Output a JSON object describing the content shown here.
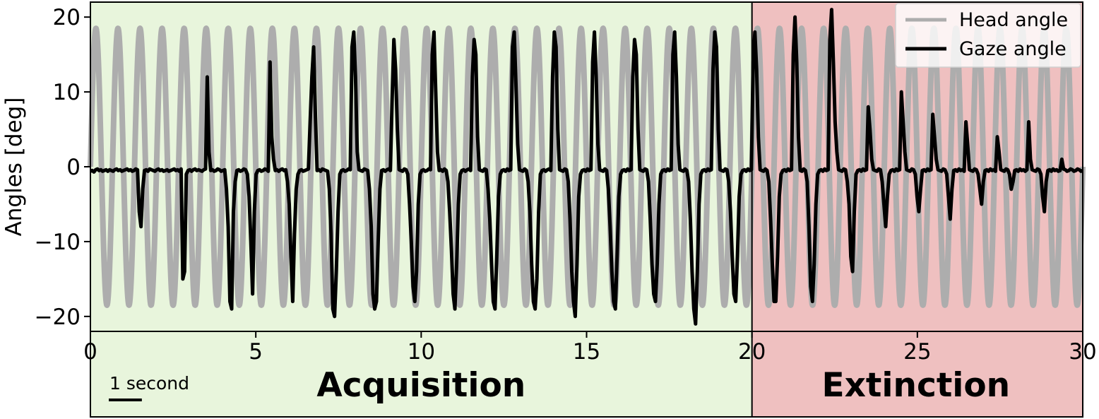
{
  "colors": {
    "acquisition_bg": "#e8f5dc",
    "extinction_bg": "#efc0c0",
    "head_line": "#adadad",
    "gaze_line": "#000000",
    "axis": "#000000",
    "legend_bg": "#ffffff"
  },
  "chart_data": {
    "type": "line",
    "title": "",
    "xlabel": "",
    "ylabel": "Angles [deg]",
    "xlim": [
      0,
      30
    ],
    "ylim": [
      -22,
      22
    ],
    "xticks": [
      0,
      5,
      10,
      15,
      20,
      25,
      30
    ],
    "xtick_labels": [
      "0",
      "5",
      "10",
      "15",
      "20",
      "25",
      "30"
    ],
    "yticks": [
      20,
      10,
      0,
      -10,
      -20
    ],
    "ytick_labels": [
      "20",
      "10",
      "0",
      "−10",
      "−20"
    ],
    "grid": false,
    "legend": {
      "location": "top-right",
      "entries": [
        {
          "label": "Head angle",
          "color": "#adadad"
        },
        {
          "label": "Gaze angle",
          "color": "#000000"
        }
      ]
    },
    "phases": [
      {
        "name": "Acquisition",
        "start": 0,
        "end": 20,
        "color": "#e8f5dc"
      },
      {
        "name": "Extinction",
        "start": 20,
        "end": 30,
        "color": "#efc0c0"
      }
    ],
    "scale_bar": {
      "label": "1 second",
      "seconds": 1
    },
    "series": [
      {
        "name": "Head angle",
        "color": "#adadad",
        "kind": "sine",
        "amplitude": 18.5,
        "cycles": 45,
        "duration": 30
      },
      {
        "name": "Gaze angle",
        "color": "#000000",
        "kind": "sampled",
        "baseline": -0.4,
        "sample_step": 0.1667,
        "values": [
          -0.6,
          -0.5,
          -0.7,
          -0.4,
          -0.3,
          -0.5,
          -0.4,
          -0.6,
          -0.5,
          -0.4,
          -0.6,
          -0.4,
          -0.5,
          -0.6,
          -0.4,
          -0.3,
          -0.5,
          -0.4,
          -0.6,
          -0.5,
          -0.4,
          -0.3,
          -0.5,
          -0.4,
          -0.6,
          -0.5,
          -0.3,
          -0.4,
          -6,
          -8,
          -3,
          -0.5,
          -0.4,
          -0.6,
          -0.3,
          -0.4,
          -0.5,
          -0.6,
          -0.4,
          -0.3,
          -0.5,
          -0.4,
          -0.6,
          -0.5,
          -0.4,
          -0.6,
          -0.5,
          -0.4,
          -0.3,
          -0.5,
          -0.4,
          -0.6,
          -0.3,
          -15,
          -14,
          -1,
          -0.5,
          -0.4,
          -0.6,
          -0.4,
          -0.3,
          -0.5,
          -0.4,
          -0.5,
          -0.6,
          -0.4,
          -0.3,
          12,
          2,
          -0.5,
          -0.4,
          -0.6,
          -0.5,
          -0.3,
          -0.4,
          -0.6,
          -0.5,
          -0.4,
          -3,
          -8,
          -18,
          -19,
          -6,
          -2,
          -0.5,
          -0.4,
          -0.6,
          -0.5,
          -0.3,
          -0.4,
          -1,
          -4,
          -10,
          -17,
          -6,
          -1,
          -0.5,
          -0.4,
          -0.6,
          -0.5,
          -0.3,
          -0.4,
          -0.6,
          14,
          4,
          1,
          -0.5,
          -0.4,
          -0.6,
          -0.4,
          -0.3,
          -0.5,
          -0.4,
          -2,
          -5,
          -12,
          -18,
          -9,
          -3,
          -1,
          -0.5,
          -0.4,
          -0.6,
          -0.5,
          -0.4,
          -0.3,
          6,
          12,
          16,
          7,
          -0.5,
          -0.4,
          -0.6,
          -0.3,
          -0.4,
          -0.5,
          -0.6,
          -3,
          -9,
          -19,
          -20,
          -14,
          -6,
          -1,
          -0.5,
          -0.4,
          -0.6,
          -0.5,
          -0.3,
          -0.4,
          16,
          18,
          12,
          2,
          -0.4,
          -0.5,
          -0.6,
          -0.3,
          -0.4,
          -0.5,
          -3,
          -8,
          -17,
          -19,
          -18,
          -10,
          -3,
          -0.5,
          -0.4,
          -0.6,
          -0.4,
          -0.3,
          -0.5,
          9,
          17,
          13,
          5,
          -0.4,
          -0.5,
          -0.6,
          -0.3,
          -0.4,
          -1,
          -5,
          -10,
          -16,
          -18,
          -14,
          -5,
          -1,
          -0.5,
          -0.4,
          -0.6,
          -0.5,
          -0.3,
          -0.4,
          15,
          18,
          10,
          2,
          -0.5,
          -0.4,
          -0.6,
          -0.3,
          -0.5,
          -2,
          -6,
          -11,
          -17,
          -19,
          -13,
          -5,
          -1,
          -0.5,
          -0.4,
          -0.6,
          -0.4,
          -0.3,
          -0.5,
          12,
          17,
          15,
          4,
          -0.4,
          -0.5,
          -0.6,
          -0.3,
          -0.4,
          -3,
          -7,
          -13,
          -18,
          -19,
          -12,
          -4,
          -1,
          -0.5,
          -0.4,
          -0.6,
          -0.3,
          -0.5,
          -0.4,
          16,
          18,
          11,
          3,
          -0.4,
          -0.5,
          -0.6,
          -0.3,
          -0.5,
          -2,
          -6,
          -13,
          -18,
          -19,
          -15,
          -6,
          -1,
          -0.5,
          -0.4,
          -0.6,
          -0.4,
          -0.3,
          -0.5,
          12,
          18,
          16,
          5,
          -0.4,
          -0.5,
          -0.6,
          -0.3,
          -0.4,
          -2,
          -7,
          -14,
          -18,
          -20,
          -13,
          -4,
          -1,
          -0.5,
          -0.4,
          -0.6,
          -0.3,
          -0.5,
          -0.4,
          14,
          18,
          12,
          3,
          -0.4,
          -0.5,
          -0.6,
          -0.3,
          -0.5,
          -3,
          -8,
          -14,
          -18,
          -19,
          -12,
          -4,
          -1,
          -0.5,
          -0.4,
          -0.6,
          -0.3,
          -0.5,
          -0.4,
          12,
          17,
          15,
          5,
          -0.4,
          -0.5,
          -0.6,
          -0.3,
          -0.4,
          -2,
          -7,
          -13,
          -17,
          -18,
          -13,
          -5,
          -1,
          -0.5,
          -0.4,
          -0.6,
          -0.3,
          -0.5,
          -0.4,
          15,
          18,
          12,
          3,
          -0.4,
          -0.5,
          -0.6,
          -0.3,
          -0.5,
          -2,
          -7,
          -14,
          -19,
          -21,
          -14,
          -5,
          -1,
          -0.5,
          -0.4,
          -0.6,
          -0.3,
          -0.5,
          -0.4,
          13,
          18,
          16,
          5,
          -0.4,
          -0.5,
          -0.6,
          -0.3,
          -0.4,
          -2,
          -6,
          -12,
          -17,
          -18,
          -12,
          -4,
          -1,
          -0.5,
          -0.4,
          -0.6,
          -0.3,
          -0.5,
          -0.4,
          14,
          18,
          13,
          4,
          -0.4,
          -0.5,
          -0.6,
          -0.3,
          -0.5,
          -2,
          -7,
          -13,
          -18,
          -18,
          -12,
          -4,
          -1,
          -0.5,
          -0.4,
          -0.6,
          -0.3,
          -0.5,
          -0.4,
          15,
          20,
          14,
          4,
          -0.5,
          -0.6,
          -0.3,
          -0.5,
          -2,
          -8,
          -16,
          -18,
          -13,
          -5,
          -1,
          -0.5,
          -0.4,
          -0.6,
          -0.3,
          -0.5,
          -0.4,
          17,
          21,
          14,
          6,
          2,
          -0.4,
          -0.5,
          -0.6,
          -0.3,
          -0.4,
          -2,
          -5,
          -12,
          -14,
          -6,
          -1,
          -0.5,
          -0.4,
          -0.6,
          -0.3,
          -0.5,
          -0.4,
          8,
          5,
          1,
          -0.4,
          -0.5,
          -0.6,
          -0.3,
          -0.4,
          -2,
          -5,
          -8,
          -4,
          -1,
          -0.5,
          -0.4,
          -0.6,
          -0.3,
          -0.5,
          -0.4,
          10,
          6,
          2,
          -0.4,
          -0.5,
          -0.6,
          -0.3,
          -0.4,
          -1,
          -4,
          -6,
          -3,
          -0.5,
          -0.4,
          -0.6,
          -0.3,
          -0.5,
          -0.4,
          7,
          4,
          1,
          -0.4,
          -0.5,
          -0.6,
          -0.3,
          -0.4,
          -1,
          -4,
          -7,
          -3,
          -0.5,
          -0.4,
          -0.6,
          -0.3,
          -0.5,
          -0.4,
          -0.6,
          6,
          3,
          -0.4,
          -0.5,
          -0.6,
          -0.3,
          -0.4,
          -1,
          -3,
          -5,
          -2,
          -0.5,
          -0.4,
          -0.6,
          -0.3,
          -0.5,
          -0.4,
          -0.6,
          4,
          2,
          -0.4,
          -0.5,
          -0.6,
          -0.3,
          -0.4,
          -1,
          -3,
          -2,
          -0.5,
          -0.4,
          -0.6,
          -0.3,
          -0.5,
          -0.4,
          -0.6,
          -0.4,
          6,
          1,
          -0.4,
          -0.5,
          -0.6,
          -0.3,
          -0.4,
          -1,
          -4,
          -6,
          -2,
          -0.5,
          -0.4,
          -0.6,
          -0.3,
          -0.5,
          -0.4,
          -0.6,
          -0.5,
          1,
          -0.3,
          -0.4,
          -0.6,
          -0.5,
          -0.3,
          -0.4,
          -0.6,
          -0.5,
          -0.3,
          -0.4,
          -0.6,
          -0.5
        ]
      }
    ]
  }
}
